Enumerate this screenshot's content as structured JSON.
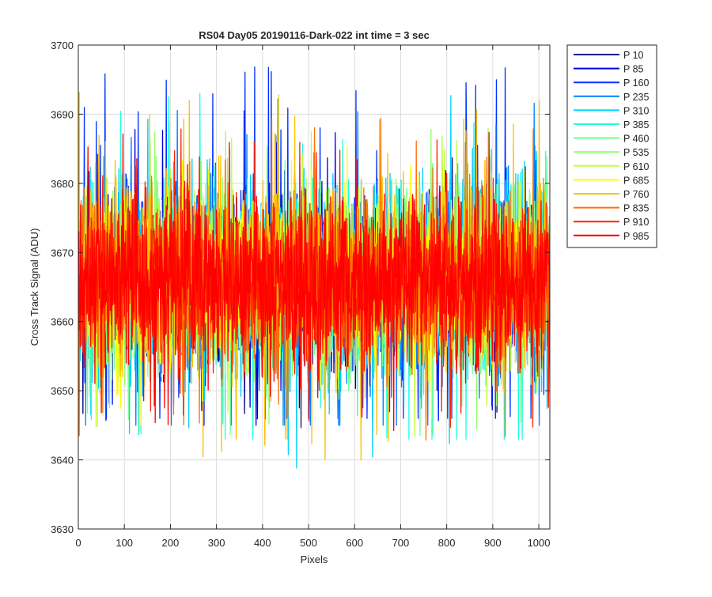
{
  "chart_data": {
    "type": "line",
    "title": "RS04 Day05 20190116-Dark-022 int time = 3 sec",
    "xlabel": "Pixels",
    "ylabel": "Cross Track Signal (ADU)",
    "xlim": [
      0,
      1024
    ],
    "ylim": [
      3630,
      3700
    ],
    "xticks": [
      0,
      100,
      200,
      300,
      400,
      500,
      600,
      700,
      800,
      900,
      1000
    ],
    "yticks": [
      3630,
      3640,
      3650,
      3660,
      3670,
      3680,
      3690,
      3700
    ],
    "grid": true,
    "legend_placement": "outside-top-right",
    "series": [
      {
        "name": "P 10",
        "color": "#00008f",
        "mean": 3666,
        "min": 3645,
        "max": 3687
      },
      {
        "name": "P 85",
        "color": "#0000df",
        "mean": 3666,
        "min": 3645,
        "max": 3688
      },
      {
        "name": "P 160",
        "color": "#0030ff",
        "mean": 3666,
        "min": 3646,
        "max": 3697
      },
      {
        "name": "P 235",
        "color": "#0080ff",
        "mean": 3666,
        "min": 3645,
        "max": 3693
      },
      {
        "name": "P 310",
        "color": "#00cfff",
        "mean": 3666,
        "min": 3636,
        "max": 3694
      },
      {
        "name": "P 385",
        "color": "#20ffdf",
        "mean": 3666,
        "min": 3643,
        "max": 3694
      },
      {
        "name": "P 460",
        "color": "#70ff8f",
        "mean": 3666,
        "min": 3636,
        "max": 3689
      },
      {
        "name": "P 535",
        "color": "#90ff6f",
        "mean": 3666,
        "min": 3644,
        "max": 3688
      },
      {
        "name": "P 610",
        "color": "#bfff40",
        "mean": 3666,
        "min": 3639,
        "max": 3689
      },
      {
        "name": "P 685",
        "color": "#ffff00",
        "mean": 3666,
        "min": 3644,
        "max": 3688
      },
      {
        "name": "P 760",
        "color": "#ffbf00",
        "mean": 3666,
        "min": 3640,
        "max": 3694
      },
      {
        "name": "P 835",
        "color": "#ff7000",
        "mean": 3666,
        "min": 3642,
        "max": 3690
      },
      {
        "name": "P 910",
        "color": "#ff2000",
        "mean": 3666,
        "min": 3641,
        "max": 3688
      },
      {
        "name": "P 985",
        "color": "#ff0000",
        "mean": 3666,
        "min": 3643,
        "max": 3688
      }
    ]
  }
}
